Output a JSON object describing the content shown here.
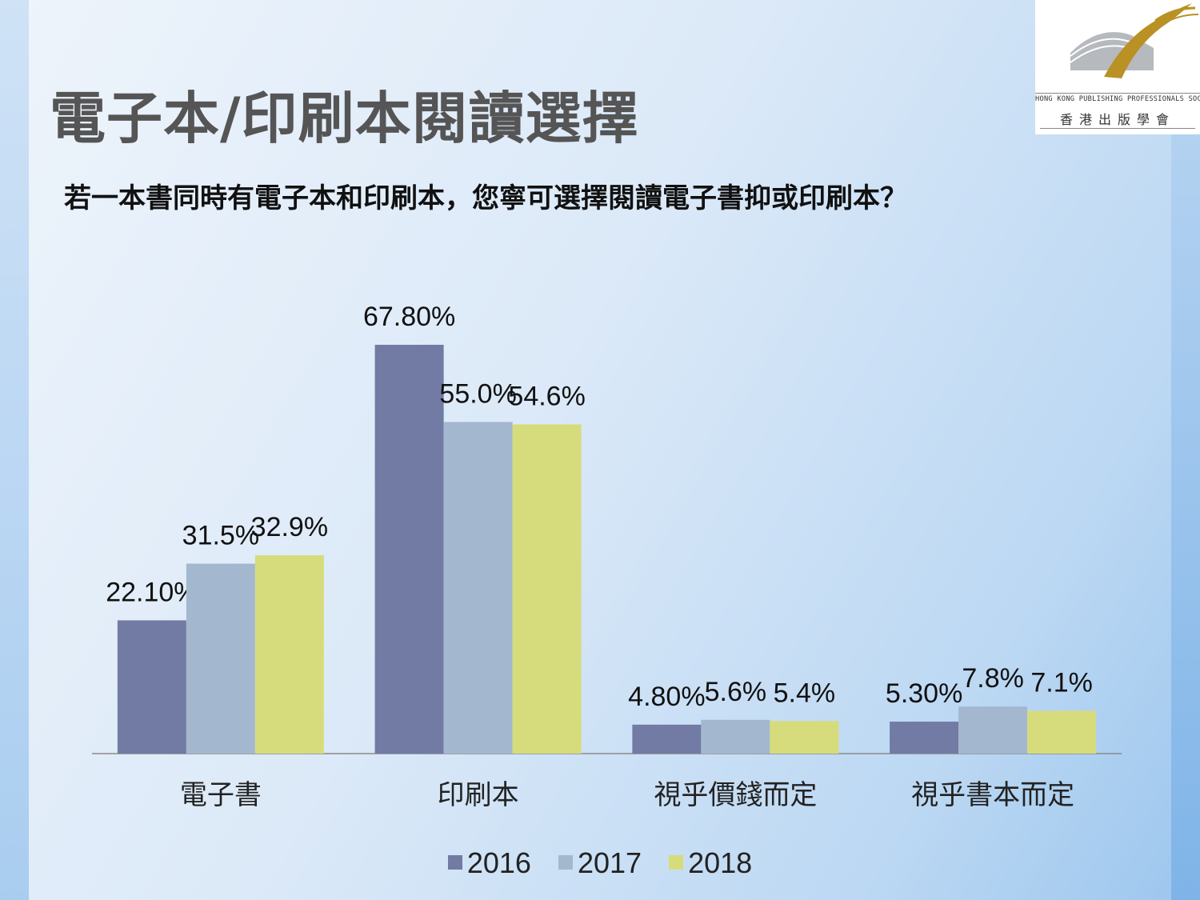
{
  "title": "電子本/印刷本閱讀選擇",
  "question": "若一本書同時有電子本和印刷本，您寧可選擇閱讀電子書抑或印刷本？",
  "logo": {
    "english": "HONG KONG PUBLISHING PROFESSIONALS SOCIETY",
    "chinese": "香港出版學會"
  },
  "chart_data": {
    "type": "bar",
    "categories": [
      "電子書",
      "印刷本",
      "視乎價錢而定",
      "視乎書本而定"
    ],
    "series": [
      {
        "name": "2016",
        "color": "#717ba3",
        "values": [
          22.1,
          67.8,
          4.8,
          5.3
        ],
        "labels": [
          "22.10%",
          "67.80%",
          "4.80%",
          "5.30%"
        ]
      },
      {
        "name": "2017",
        "color": "#a3b8cf",
        "values": [
          31.5,
          55.0,
          5.6,
          7.8
        ],
        "labels": [
          "31.5%",
          "55.0%",
          "5.6%",
          "7.8%"
        ]
      },
      {
        "name": "2018",
        "color": "#d6dc7c",
        "values": [
          32.9,
          54.6,
          5.4,
          7.1
        ],
        "labels": [
          "32.9%",
          "54.6%",
          "5.4%",
          "7.1%"
        ]
      }
    ],
    "ylim": [
      0,
      85
    ],
    "grid": false,
    "legend": "bottom"
  }
}
